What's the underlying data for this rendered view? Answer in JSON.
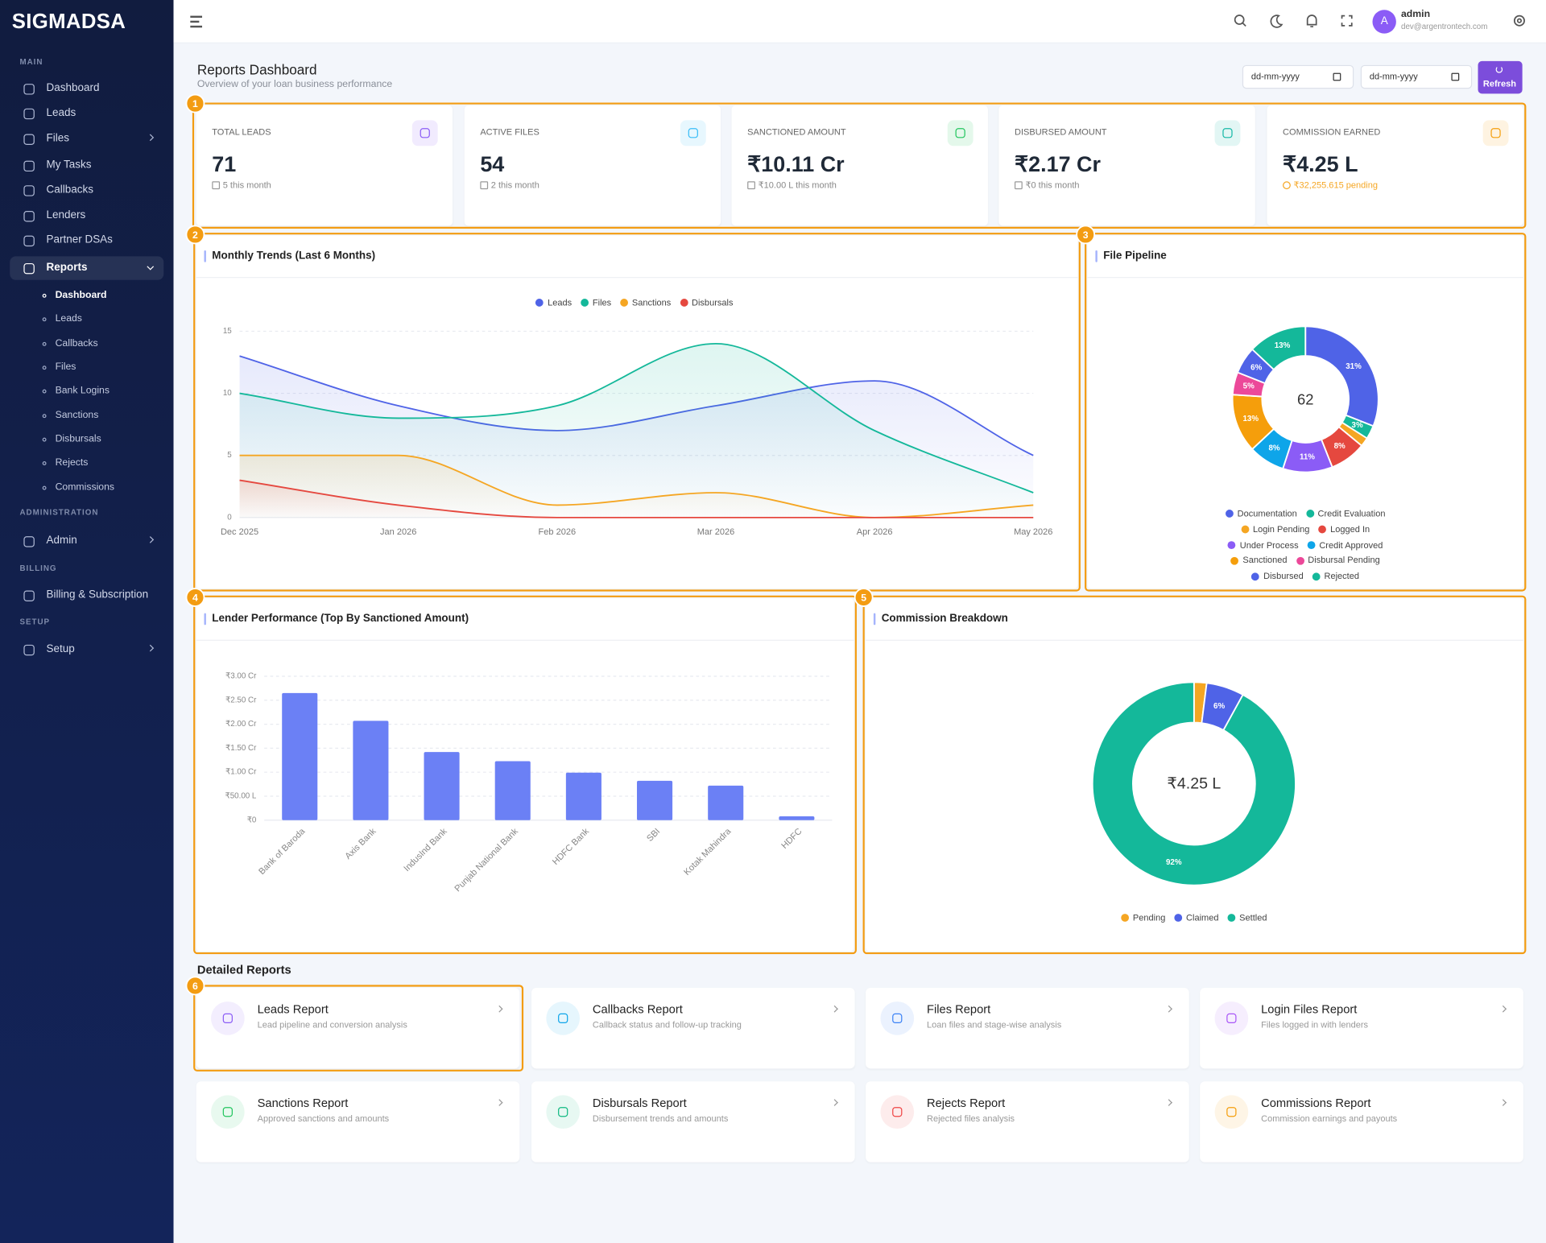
{
  "sidebar": {
    "logo": "SIGMADSA",
    "sections": [
      {
        "title": "MAIN",
        "items": [
          "Dashboard",
          "Leads",
          "Files",
          "My Tasks",
          "Callbacks",
          "Lenders",
          "Partner DSAs",
          "Reports"
        ]
      },
      {
        "title": "ADMINISTRATION",
        "items": [
          "Admin"
        ]
      },
      {
        "title": "BILLING",
        "items": [
          "Billing & Subscription"
        ]
      },
      {
        "title": "SETUP",
        "items": [
          "Setup"
        ]
      }
    ],
    "reports_submenu": [
      "Dashboard",
      "Leads",
      "Callbacks",
      "Files",
      "Bank Logins",
      "Sanctions",
      "Disbursals",
      "Rejects",
      "Commissions"
    ]
  },
  "topbar": {
    "avatar": "A",
    "user": "admin",
    "email": "dev@argentrontech.com"
  },
  "header": {
    "title": "Reports Dashboard",
    "subtitle": "Overview of your loan business performance",
    "date_from": "dd-mm-yyyy",
    "date_to": "dd-mm-yyyy",
    "refresh": "Refresh"
  },
  "annotations": [
    "1",
    "2",
    "3",
    "4",
    "5",
    "6"
  ],
  "kpis": [
    {
      "label": "TOTAL LEADS",
      "value": "71",
      "note": "5 this month"
    },
    {
      "label": "ACTIVE FILES",
      "value": "54",
      "note": "2 this month"
    },
    {
      "label": "SANCTIONED AMOUNT",
      "value": "₹10.11 Cr",
      "note": "₹10.00 L this month"
    },
    {
      "label": "DISBURSED AMOUNT",
      "value": "₹2.17 Cr",
      "note": "₹0 this month"
    },
    {
      "label": "COMMISSION EARNED",
      "value": "₹4.25 L",
      "note": "₹32,255.615 pending"
    }
  ],
  "chart_data": [
    {
      "type": "line",
      "title": "Monthly Trends (Last 6 Months)",
      "area": true,
      "grid": true,
      "categories": [
        "Dec 2025",
        "Jan 2026",
        "Feb 2026",
        "Mar 2026",
        "Apr 2026",
        "May 2026"
      ],
      "series": [
        {
          "name": "Leads",
          "color": "#4f63e7",
          "values": [
            13,
            9,
            7,
            9,
            11,
            5
          ]
        },
        {
          "name": "Files",
          "color": "#14b89a",
          "values": [
            10,
            8,
            9,
            14,
            7,
            2
          ]
        },
        {
          "name": "Sanctions",
          "color": "#f5a623",
          "values": [
            5,
            5,
            1,
            2,
            0,
            1
          ]
        },
        {
          "name": "Disbursals",
          "color": "#e5483f",
          "values": [
            3,
            1,
            0,
            0,
            0,
            0
          ]
        }
      ],
      "ylim": [
        0,
        15
      ],
      "yticks": [
        0,
        5,
        10,
        15
      ]
    },
    {
      "type": "pie",
      "title": "File Pipeline",
      "donut": true,
      "center_label": "62",
      "categories": [
        "Documentation",
        "Credit Evaluation",
        "Login Pending",
        "Logged In",
        "Under Process",
        "Credit Approved",
        "Sanctioned",
        "Disbursal Pending",
        "Disbursed",
        "Rejected"
      ],
      "colors": [
        "#4f63e7",
        "#14b89a",
        "#f5a623",
        "#e5483f",
        "#8b5cf6",
        "#0ea5e9",
        "#f59e0b",
        "#ec4899",
        "#4f63e7",
        "#14b89a"
      ],
      "values": [
        31,
        3,
        2,
        8,
        11,
        8,
        13,
        5,
        6,
        13
      ],
      "value_labels": [
        "31%",
        "3%",
        null,
        "8%",
        "11%",
        "8%",
        "13%",
        "5%",
        "6%",
        "13%"
      ]
    },
    {
      "type": "bar",
      "title": "Lender Performance (Top By Sanctioned Amount)",
      "grid": true,
      "color": "#6b80f5",
      "categories": [
        "Bank of Baroda",
        "Axis Bank",
        "IndusInd Bank",
        "Punjab National Bank",
        "HDFC Bank",
        "SBI",
        "Kotak Mahindra",
        "HDFC"
      ],
      "values": [
        2.65,
        2.07,
        1.42,
        1.23,
        0.99,
        0.82,
        0.72,
        0.08
      ],
      "ylim": [
        0,
        3
      ],
      "yticks": [
        {
          "value": 0,
          "label": "₹0"
        },
        {
          "value": 0.5,
          "label": "₹50.00 L"
        },
        {
          "value": 1,
          "label": "₹1.00 Cr"
        },
        {
          "value": 1.5,
          "label": "₹1.50 Cr"
        },
        {
          "value": 2,
          "label": "₹2.00 Cr"
        },
        {
          "value": 2.5,
          "label": "₹2.50 Cr"
        },
        {
          "value": 3,
          "label": "₹3.00 Cr"
        }
      ]
    },
    {
      "type": "pie",
      "title": "Commission Breakdown",
      "donut": true,
      "center_label": "₹4.25 L",
      "categories": [
        "Pending",
        "Claimed",
        "Settled"
      ],
      "colors": [
        "#f5a623",
        "#4f63e7",
        "#14b89a"
      ],
      "values": [
        2,
        6,
        92
      ],
      "value_labels": [
        null,
        "6%",
        "92%"
      ]
    }
  ],
  "detailed_reports": {
    "title": "Detailed Reports",
    "cards": [
      {
        "title": "Leads Report",
        "description": "Lead pipeline and conversion analysis"
      },
      {
        "title": "Callbacks Report",
        "description": "Callback status and follow-up tracking"
      },
      {
        "title": "Files Report",
        "description": "Loan files and stage-wise analysis"
      },
      {
        "title": "Login Files Report",
        "description": "Files logged in with lenders"
      },
      {
        "title": "Sanctions Report",
        "description": "Approved sanctions and amounts"
      },
      {
        "title": "Disbursals Report",
        "description": "Disbursement trends and amounts"
      },
      {
        "title": "Rejects Report",
        "description": "Rejected files analysis"
      },
      {
        "title": "Commissions Report",
        "description": "Commission earnings and payouts"
      }
    ]
  }
}
